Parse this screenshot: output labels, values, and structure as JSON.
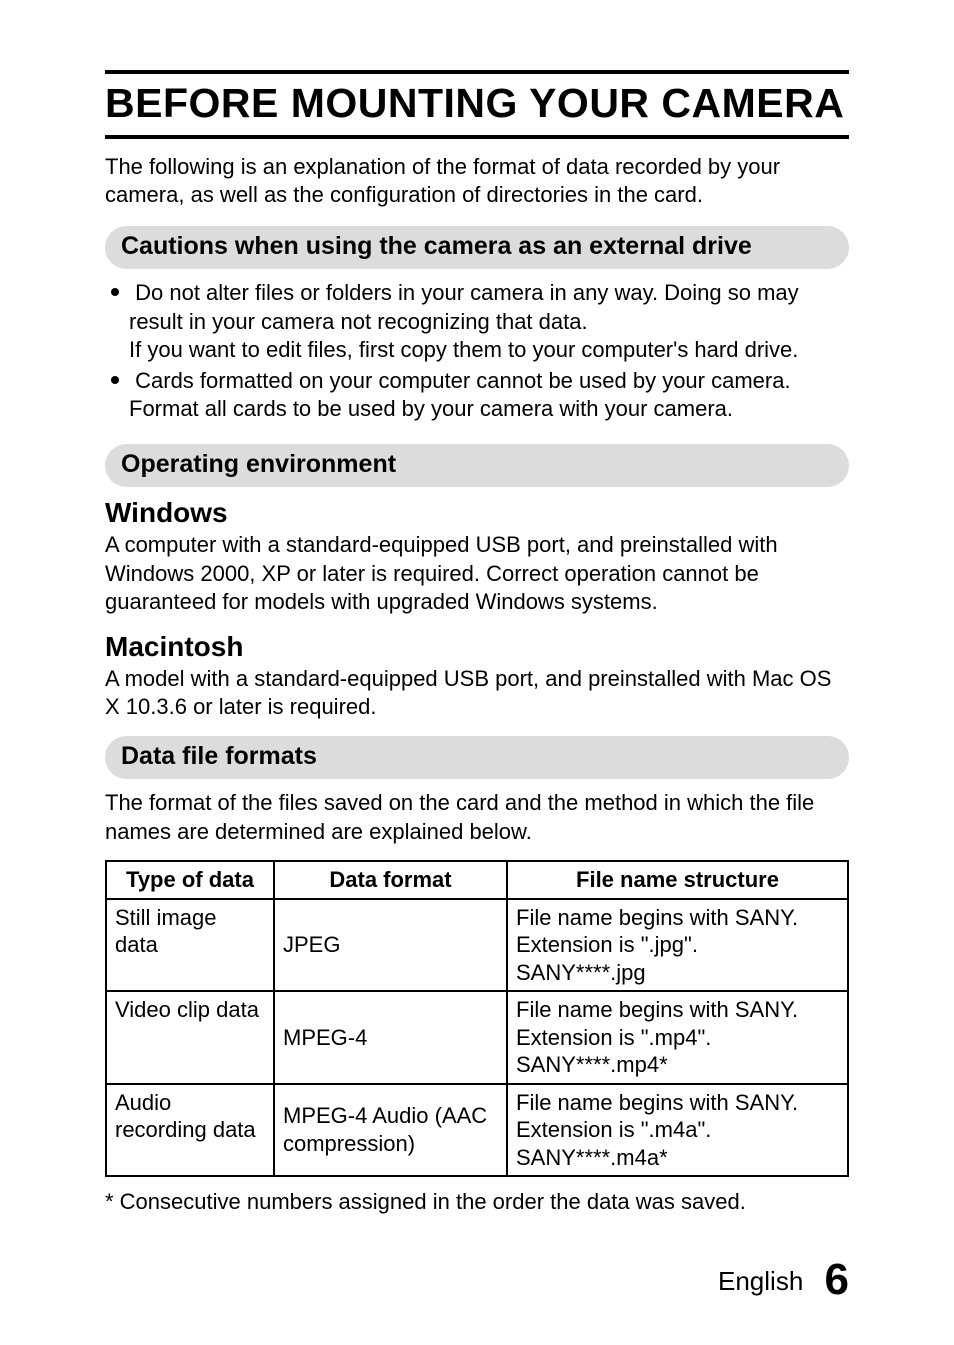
{
  "chapter_title": "BEFORE MOUNTING YOUR CAMERA",
  "intro": "The following is an explanation of the format of data recorded by your camera, as well as the configuration of directories in the card.",
  "sections": {
    "cautions": {
      "heading": "Cautions when using the camera as an external drive",
      "bullets": [
        {
          "main": "Do not alter files or folders in your camera in any way. Doing so may result in your camera not recognizing that data.",
          "sub": "If you want to edit files, first copy them to your computer's hard drive."
        },
        {
          "main": "Cards formatted on your computer cannot be used by your camera. Format all cards to be used by your camera with your camera."
        }
      ]
    },
    "environment": {
      "heading": "Operating environment",
      "windows": {
        "title": "Windows",
        "text": "A computer with a standard-equipped USB port, and preinstalled with Windows 2000, XP or later is required. Correct operation cannot be guaranteed for models with upgraded Windows systems."
      },
      "mac": {
        "title": "Macintosh",
        "text": "A model with a standard-equipped USB port, and preinstalled with Mac OS X 10.3.6 or later is required."
      }
    },
    "formats": {
      "heading": "Data file formats",
      "intro": "The format of the files saved on the card and the method in which the file names are determined are explained below.",
      "table": {
        "headers": [
          "Type of data",
          "Data format",
          "File name structure"
        ],
        "rows": [
          {
            "type": "Still image data",
            "format": "JPEG",
            "structure": "File name begins with SANY. Extension is \".jpg\". SANY****.jpg"
          },
          {
            "type": "Video clip data",
            "format": "MPEG-4",
            "structure": "File name begins with SANY. Extension is \".mp4\". SANY****.mp4*"
          },
          {
            "type": "Audio recording data",
            "format": "MPEG-4 Audio (AAC compression)",
            "structure": "File name begins with SANY. Extension is \".m4a\". SANY****.m4a*"
          }
        ]
      },
      "footnote": "*  Consecutive numbers assigned in the order the data was saved."
    }
  },
  "footer": {
    "language": "English",
    "page_number": "6"
  }
}
